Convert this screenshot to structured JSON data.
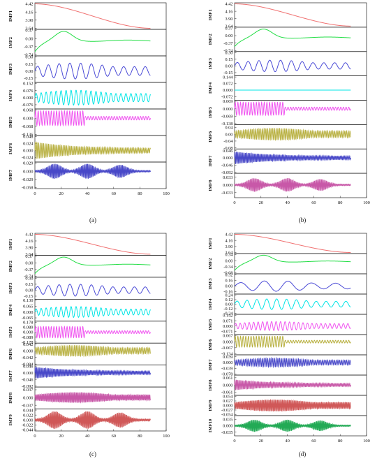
{
  "chart_data": [
    {
      "type": "line",
      "caption": "(a)",
      "x_ticks": [
        "0",
        "20",
        "40",
        "60",
        "80",
        "100"
      ],
      "xlim": [
        0,
        100
      ],
      "x_end": 88,
      "panels": [
        {
          "name": "IMF1",
          "color": "#f07070",
          "ticks": [
            "4.42",
            "4.16",
            "3.90",
            "3.64"
          ],
          "ylim": [
            3.64,
            4.42
          ],
          "signal": {
            "kind": "trend",
            "start": 4.42,
            "end": 3.64
          }
        },
        {
          "name": "IMF2",
          "color": "#22dd44",
          "ticks": [
            "0.37",
            "0.00",
            "-0.37",
            "-0.74"
          ],
          "ylim": [
            -0.74,
            0.37
          ],
          "signal": {
            "kind": "hump",
            "peak_x": 22,
            "peak": 0.32,
            "start": -0.6,
            "tail": -0.1
          }
        },
        {
          "name": "IMF3",
          "color": "#4a4ad6",
          "ticks": [
            "0.30",
            "0.15",
            "0.00",
            "-0.15"
          ],
          "ylim": [
            -0.22,
            0.3
          ],
          "signal": {
            "kind": "osc",
            "amp": 0.17,
            "period": 8.2,
            "env": "mid"
          }
        },
        {
          "name": "IMF4",
          "color": "#00e5e5",
          "ticks": [
            "0.152",
            "0.076",
            "0.000",
            "-0.076"
          ],
          "ylim": [
            -0.11,
            0.152
          ],
          "signal": {
            "kind": "osc",
            "amp": 0.08,
            "period": 3.8,
            "env": "mid"
          }
        },
        {
          "name": "IMF5",
          "color": "#f055f0",
          "ticks": [
            "0.068",
            "0.000",
            "-0.068",
            "-0.136"
          ],
          "ylim": [
            -0.136,
            0.068
          ],
          "signal": {
            "kind": "osc",
            "amp": 0.06,
            "period": 2.0,
            "env": "front"
          }
        },
        {
          "name": "IMF6",
          "color": "#b8b040",
          "ticks": [
            "0.048",
            "0.024",
            "0.000",
            "-0.024"
          ],
          "ylim": [
            -0.036,
            0.048
          ],
          "signal": {
            "kind": "osc",
            "amp": 0.03,
            "period": 1.25,
            "env": "decay"
          }
        },
        {
          "name": "IMF7",
          "color": "#4848c8",
          "ticks": [
            "0.029",
            "0.000",
            "-0.029",
            "-0.058"
          ],
          "ylim": [
            -0.058,
            0.029
          ],
          "signal": {
            "kind": "osc",
            "amp": 0.024,
            "period": 0.95,
            "env": "bursts"
          }
        }
      ]
    },
    {
      "type": "line",
      "caption": "(b)",
      "x_ticks": [
        "0",
        "20",
        "40",
        "60",
        "80",
        "100"
      ],
      "xlim": [
        0,
        100
      ],
      "x_end": 88,
      "panels": [
        {
          "name": "IMF1",
          "color": "#f07070",
          "ticks": [
            "4.42",
            "4.16",
            "3.90",
            "3.64"
          ],
          "ylim": [
            3.64,
            4.42
          ],
          "signal": {
            "kind": "trend",
            "start": 4.42,
            "end": 3.64
          }
        },
        {
          "name": "IMF2",
          "color": "#22dd44",
          "ticks": [
            "0.37",
            "0.00",
            "-0.37",
            "-0.74"
          ],
          "ylim": [
            -0.74,
            0.37
          ],
          "signal": {
            "kind": "hump",
            "peak_x": 22,
            "peak": 0.32,
            "start": -0.55,
            "tail": -0.1
          }
        },
        {
          "name": "IMF3",
          "color": "#4a4ad6",
          "ticks": [
            "0.30",
            "0.15",
            "0.00",
            "-0.15"
          ],
          "ylim": [
            -0.2,
            0.3
          ],
          "signal": {
            "kind": "osc",
            "amp": 0.13,
            "period": 8.2,
            "env": "mid"
          }
        },
        {
          "name": "IMF4",
          "color": "#00e5e5",
          "ticks": [
            "0.144",
            "0.072",
            "0.000",
            "-0.072"
          ],
          "ylim": [
            -0.1,
            0.144
          ],
          "signal": {
            "kind": "flat"
          }
        },
        {
          "name": "IMF5",
          "color": "#f055f0",
          "ticks": [
            "0.069",
            "0.000",
            "-0.069",
            "-0.138"
          ],
          "ylim": [
            -0.138,
            0.069
          ],
          "signal": {
            "kind": "osc",
            "amp": 0.06,
            "period": 2.0,
            "env": "front"
          }
        },
        {
          "name": "IMF6",
          "color": "#b8b040",
          "ticks": [
            "0.04",
            "0.00",
            "-0.04",
            "-0.08"
          ],
          "ylim": [
            -0.08,
            0.05
          ],
          "signal": {
            "kind": "osc",
            "amp": 0.035,
            "period": 1.3,
            "env": "mid"
          }
        },
        {
          "name": "IMF7",
          "color": "#4848c8",
          "ticks": [
            "0.046",
            "0.000",
            "-0.046",
            "-0.092"
          ],
          "ylim": [
            -0.092,
            0.05
          ],
          "signal": {
            "kind": "osc",
            "amp": 0.04,
            "period": 1.0,
            "env": "decay"
          }
        },
        {
          "name": "IMF8",
          "color": "#c858a8",
          "ticks": [
            "0.033",
            "0.000",
            "-0.033"
          ],
          "ylim": [
            -0.05,
            0.045
          ],
          "signal": {
            "kind": "osc",
            "amp": 0.026,
            "period": 0.9,
            "env": "bursts"
          }
        }
      ]
    },
    {
      "type": "line",
      "caption": "(c)",
      "x_ticks": [
        "0",
        "20",
        "40",
        "60",
        "80",
        "100"
      ],
      "xlim": [
        0,
        100
      ],
      "x_end": 88,
      "panels": [
        {
          "name": "IMF1",
          "color": "#f07070",
          "ticks": [
            "4.42",
            "4.16",
            "3.90",
            "3.64"
          ],
          "ylim": [
            3.64,
            4.42
          ],
          "signal": {
            "kind": "trend",
            "start": 4.42,
            "end": 3.64
          }
        },
        {
          "name": "IMF2",
          "color": "#22dd44",
          "ticks": [
            "0.37",
            "0.00",
            "-0.37",
            "-0.74"
          ],
          "ylim": [
            -0.74,
            0.37
          ],
          "signal": {
            "kind": "hump",
            "peak_x": 22,
            "peak": 0.32,
            "start": -0.6,
            "tail": -0.1
          }
        },
        {
          "name": "IMF3",
          "color": "#4a4ad6",
          "ticks": [
            "0.30",
            "0.15",
            "0.00",
            "-0.15"
          ],
          "ylim": [
            -0.2,
            0.3
          ],
          "signal": {
            "kind": "osc",
            "amp": 0.15,
            "period": 8.2,
            "env": "mid"
          }
        },
        {
          "name": "IMF4",
          "color": "#00e5e5",
          "ticks": [
            "0.130",
            "0.065",
            "0.000",
            "-0.065"
          ],
          "ylim": [
            -0.09,
            0.13
          ],
          "signal": {
            "kind": "osc",
            "amp": 0.06,
            "period": 3.8,
            "env": "mid"
          }
        },
        {
          "name": "IMF5",
          "color": "#f055f0",
          "ticks": [
            "0.178",
            "0.089",
            "0.000",
            "-0.089",
            "-0.178"
          ],
          "ylim": [
            -0.178,
            0.178
          ],
          "signal": {
            "kind": "osc",
            "amp": 0.1,
            "period": 2.0,
            "env": "front"
          }
        },
        {
          "name": "IMF6",
          "color": "#b8b040",
          "ticks": [
            "0.042",
            "0.000",
            "-0.042",
            "-0.084"
          ],
          "ylim": [
            -0.084,
            0.042
          ],
          "signal": {
            "kind": "osc",
            "amp": 0.035,
            "period": 1.3,
            "env": "mid"
          }
        },
        {
          "name": "IMF7",
          "color": "#4848c8",
          "ticks": [
            "0.046",
            "0.000",
            "-0.046",
            "-0.092"
          ],
          "ylim": [
            -0.092,
            0.046
          ],
          "signal": {
            "kind": "osc",
            "amp": 0.04,
            "period": 1.0,
            "env": "decay"
          }
        },
        {
          "name": "IMF8",
          "color": "#c858a8",
          "ticks": [
            "0.037",
            "0.000",
            "-0.037"
          ],
          "ylim": [
            -0.05,
            0.045
          ],
          "signal": {
            "kind": "osc",
            "amp": 0.025,
            "period": 0.9,
            "env": "mid"
          }
        },
        {
          "name": "IMF9",
          "color": "#d05858",
          "ticks": [
            "0.044",
            "0.022",
            "0.000",
            "-0.022",
            "-0.044"
          ],
          "ylim": [
            -0.044,
            0.044
          ],
          "signal": {
            "kind": "osc",
            "amp": 0.035,
            "period": 0.85,
            "env": "bursts"
          }
        }
      ]
    },
    {
      "type": "line",
      "caption": "(d)",
      "x_ticks": [
        "0",
        "20",
        "40",
        "60",
        "80",
        "100"
      ],
      "xlim": [
        0,
        100
      ],
      "x_end": 88,
      "panels": [
        {
          "name": "IMF1",
          "color": "#f07070",
          "ticks": [
            "4.42",
            "4.16",
            "3.90",
            "3.64"
          ],
          "ylim": [
            3.64,
            4.42
          ],
          "signal": {
            "kind": "trend",
            "start": 4.42,
            "end": 3.64
          }
        },
        {
          "name": "IMF2",
          "color": "#22dd44",
          "ticks": [
            "0.34",
            "0.00",
            "-0.34",
            "-0.68"
          ],
          "ylim": [
            -0.68,
            0.34
          ],
          "signal": {
            "kind": "hump",
            "peak_x": 22,
            "peak": 0.3,
            "start": -0.55,
            "tail": -0.05
          }
        },
        {
          "name": "IMF3",
          "color": "#4a4ad6",
          "ticks": [
            "0.32",
            "0.16",
            "0.00",
            "-0.16"
          ],
          "ylim": [
            -0.2,
            0.32
          ],
          "signal": {
            "kind": "osc",
            "amp": 0.15,
            "period": 18,
            "env": "mid"
          }
        },
        {
          "name": "IMF4",
          "color": "#00e5e5",
          "ticks": [
            "0.24",
            "0.12",
            "0.00",
            "-0.12",
            "-0.24"
          ],
          "ylim": [
            -0.24,
            0.24
          ],
          "signal": {
            "kind": "osc",
            "amp": 0.14,
            "period": 7.5,
            "env": "mid"
          }
        },
        {
          "name": "IMF5",
          "color": "#f055f0",
          "ticks": [
            "0.142",
            "0.071",
            "0.000",
            "-0.071"
          ],
          "ylim": [
            -0.1,
            0.142
          ],
          "signal": {
            "kind": "osc",
            "amp": 0.06,
            "period": 3.4,
            "env": "mid"
          }
        },
        {
          "name": "IMF6",
          "color": "#b8b040",
          "ticks": [
            "0.067",
            "0.000",
            "-0.067",
            "-0.134"
          ],
          "ylim": [
            -0.134,
            0.067
          ],
          "signal": {
            "kind": "osc",
            "amp": 0.06,
            "period": 2.0,
            "env": "front"
          }
        },
        {
          "name": "IMF7",
          "color": "#4848c8",
          "ticks": [
            "0.039",
            "0.000",
            "-0.039",
            "-0.078"
          ],
          "ylim": [
            -0.078,
            0.045
          ],
          "signal": {
            "kind": "osc",
            "amp": 0.03,
            "period": 1.3,
            "env": "mid"
          }
        },
        {
          "name": "IMF8",
          "color": "#c858a8",
          "ticks": [
            "0.061",
            "0.000",
            "-0.061"
          ],
          "ylim": [
            -0.08,
            0.075
          ],
          "signal": {
            "kind": "osc",
            "amp": 0.045,
            "period": 1.0,
            "env": "decay"
          }
        },
        {
          "name": "IMF9",
          "color": "#d05858",
          "ticks": [
            "0.054",
            "0.027",
            "0.000",
            "-0.027",
            "-0.054"
          ],
          "ylim": [
            -0.054,
            0.054
          ],
          "signal": {
            "kind": "osc",
            "amp": 0.035,
            "period": 0.9,
            "env": "mid"
          }
        },
        {
          "name": "IMF10",
          "color": "#22aa55",
          "ticks": [
            "0.035",
            "0.000",
            "-0.035"
          ],
          "ylim": [
            -0.05,
            0.05
          ],
          "signal": {
            "kind": "osc",
            "amp": 0.03,
            "period": 0.85,
            "env": "bursts"
          }
        }
      ]
    }
  ]
}
